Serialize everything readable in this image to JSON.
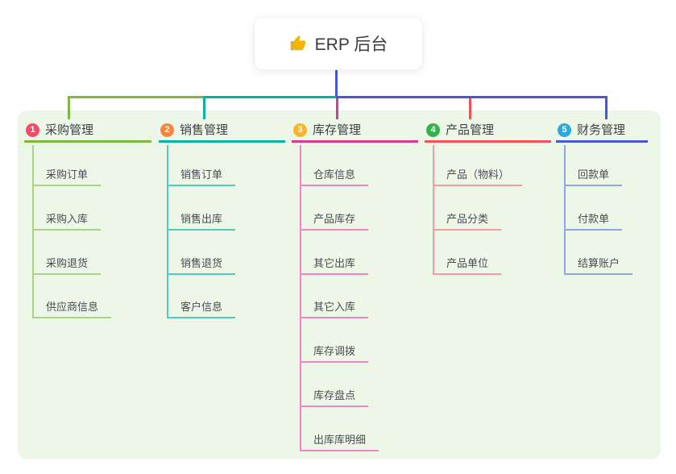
{
  "root": {
    "label": "ERP 后台",
    "icon": "thumbs-up-icon"
  },
  "connector": {
    "root_color": "#4659d2"
  },
  "branches": [
    {
      "badge": "1",
      "badge_color": "#ee4e68",
      "label": "采购管理",
      "line_color": "#7cb93f",
      "child_line_color": "#a9d383",
      "children": [
        "采购订单",
        "采购入库",
        "采购退货",
        "供应商信息"
      ]
    },
    {
      "badge": "2",
      "badge_color": "#f7863c",
      "label": "销售管理",
      "line_color": "#00b2a9",
      "child_line_color": "#53c9bf",
      "children": [
        "销售订单",
        "销售出库",
        "销售退货",
        "客户信息"
      ]
    },
    {
      "badge": "3",
      "badge_color": "#f7b52c",
      "label": "库存管理",
      "line_color": "#d93a90",
      "child_line_color": "#ef85c3",
      "children": [
        "仓库信息",
        "产品库存",
        "其它出库",
        "其它入库",
        "库存调拨",
        "库存盘点",
        "出库库明细"
      ]
    },
    {
      "badge": "4",
      "badge_color": "#2fb44c",
      "label": "产品管理",
      "line_color": "#f25159",
      "child_line_color": "#f79ba0",
      "children": [
        "产品（物料）",
        "产品分类",
        "产品单位"
      ]
    },
    {
      "badge": "5",
      "badge_color": "#2ca8dd",
      "label": "财务管理",
      "line_color": "#4659d2",
      "child_line_color": "#92a4e4",
      "children": [
        "回款单",
        "付款单",
        "结算账户"
      ]
    }
  ],
  "colors": {
    "canvas_bg": "#ffffff",
    "container_bg": "#edf7e8",
    "header_text": "#3f3f46",
    "child_text": "#4b4b52",
    "root_text": "#3b3b40",
    "thumb": "#f4b400"
  }
}
